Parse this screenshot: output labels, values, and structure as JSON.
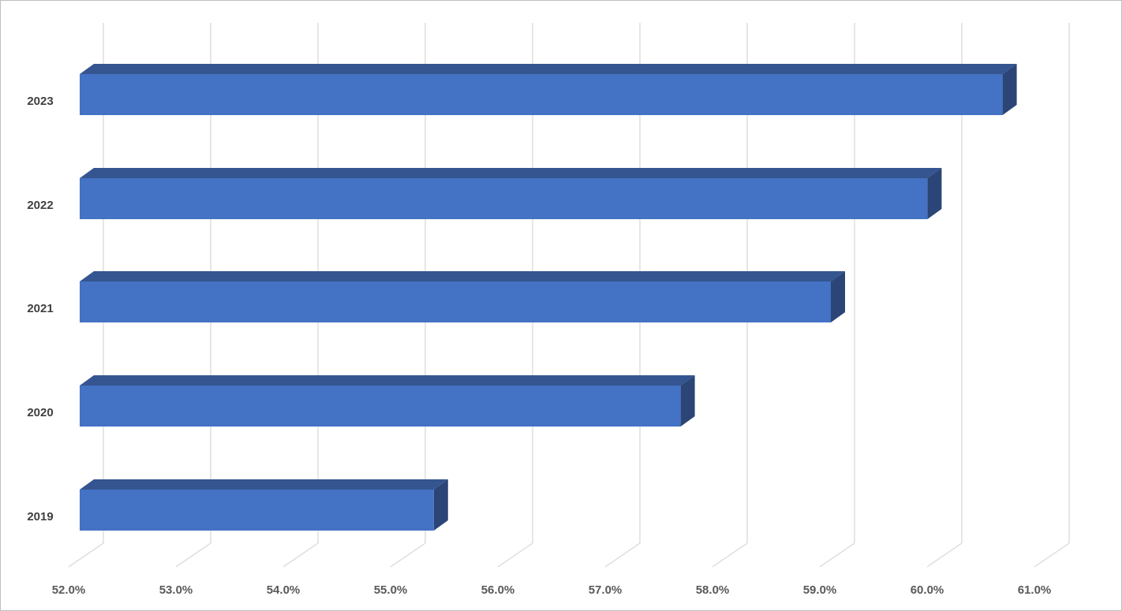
{
  "chart_data": {
    "type": "bar",
    "orientation": "horizontal",
    "style": "3d",
    "categories": [
      "2019",
      "2020",
      "2021",
      "2022",
      "2023"
    ],
    "values": [
      55.3,
      57.6,
      59.0,
      59.9,
      60.6
    ],
    "value_format": "percent_1dp",
    "xlim": [
      52.0,
      61.0
    ],
    "x_ticks": [
      "52.0%",
      "53.0%",
      "54.0%",
      "55.0%",
      "56.0%",
      "57.0%",
      "58.0%",
      "59.0%",
      "60.0%",
      "61.0%"
    ],
    "title": "",
    "xlabel": "",
    "ylabel": "",
    "grid": true,
    "legend": "none",
    "colors": {
      "bar_front": "#4472c4",
      "bar_top": "#34558f",
      "bar_side": "#2b4577",
      "grid": "#d9d9d9",
      "frame": "#bfbfbf"
    }
  }
}
